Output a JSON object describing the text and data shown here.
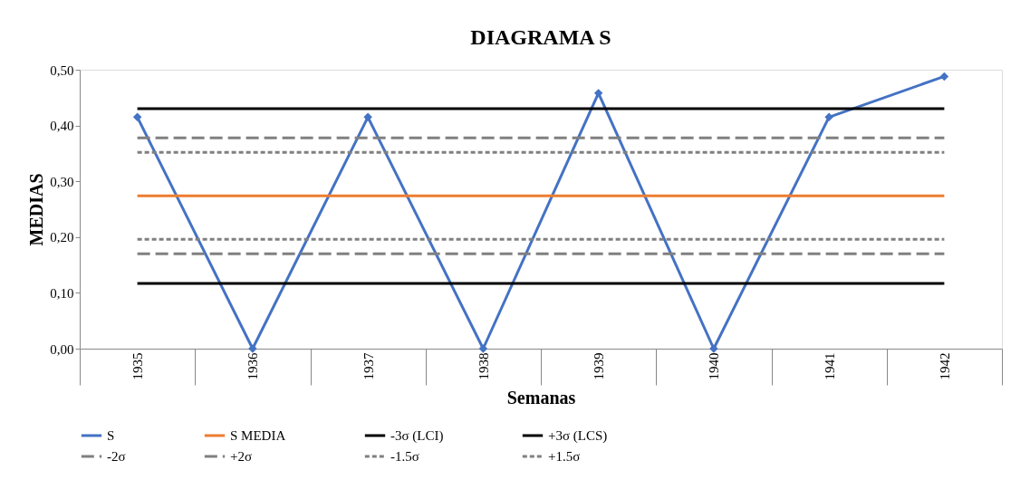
{
  "chart_data": {
    "type": "line",
    "title": "DIAGRAMA S",
    "xlabel": "Semanas",
    "ylabel": "MEDIAS",
    "categories": [
      "1935",
      "1936",
      "1937",
      "1938",
      "1939",
      "1940",
      "1941",
      "1942"
    ],
    "ylim": [
      0,
      0.5
    ],
    "yticks": [
      {
        "value": 0,
        "label": "0,00"
      },
      {
        "value": 0.1,
        "label": "0,10"
      },
      {
        "value": 0.2,
        "label": "0,20"
      },
      {
        "value": 0.3,
        "label": "0,30"
      },
      {
        "value": 0.4,
        "label": "0,40"
      },
      {
        "value": 0.5,
        "label": "0,50"
      }
    ],
    "grid": false,
    "legend": "bottom",
    "series": [
      {
        "name": "S",
        "color": "#4472c4",
        "marker": "diamond",
        "line_style": "solid",
        "values": [
          0.415,
          0,
          0.415,
          0,
          0.458,
          0,
          0.415,
          0.488
        ]
      },
      {
        "name": "S MEDIA",
        "color": "#ed7d31",
        "line_style": "solid",
        "values": [
          0.274,
          0.274,
          0.274,
          0.274,
          0.274,
          0.274,
          0.274,
          0.274
        ]
      },
      {
        "name": "-3σ (LCI)",
        "color": "#000000",
        "line_style": "solid",
        "values": [
          0.117,
          0.117,
          0.117,
          0.117,
          0.117,
          0.117,
          0.117,
          0.117
        ]
      },
      {
        "name": "+3σ (LCS)",
        "color": "#000000",
        "line_style": "solid",
        "values": [
          0.43,
          0.43,
          0.43,
          0.43,
          0.43,
          0.43,
          0.43,
          0.43
        ]
      },
      {
        "name": "-2σ",
        "color": "#808080",
        "line_style": "dashed",
        "values": [
          0.17,
          0.17,
          0.17,
          0.17,
          0.17,
          0.17,
          0.17,
          0.17
        ]
      },
      {
        "name": "+2σ",
        "color": "#808080",
        "line_style": "dashed",
        "values": [
          0.378,
          0.378,
          0.378,
          0.378,
          0.378,
          0.378,
          0.378,
          0.378
        ]
      },
      {
        "name": "-1.5σ",
        "color": "#808080",
        "line_style": "dotted",
        "values": [
          0.196,
          0.196,
          0.196,
          0.196,
          0.196,
          0.196,
          0.196,
          0.196
        ]
      },
      {
        "name": "+1.5σ",
        "color": "#808080",
        "line_style": "dotted",
        "values": [
          0.352,
          0.352,
          0.352,
          0.352,
          0.352,
          0.352,
          0.352,
          0.352
        ]
      }
    ]
  }
}
